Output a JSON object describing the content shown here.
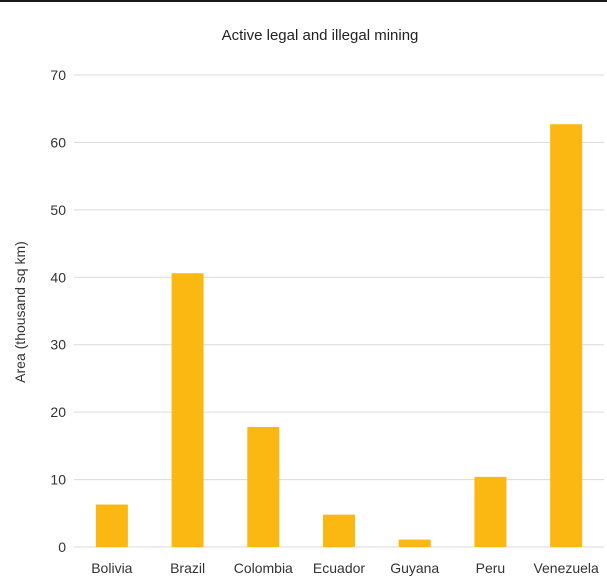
{
  "chart_data": {
    "type": "bar",
    "title": "Active legal and illegal mining",
    "xlabel": "",
    "ylabel": "Area (thousand sq km)",
    "ylim": [
      0,
      70
    ],
    "yticks": [
      0,
      10,
      20,
      30,
      40,
      50,
      60,
      70
    ],
    "grid": true,
    "legend": "none",
    "categories": [
      "Bolivia",
      "Brazil",
      "Colombia",
      "Ecuador",
      "Guyana",
      "Peru",
      "Venezuela"
    ],
    "values": [
      6.3,
      40.6,
      17.8,
      4.8,
      1.1,
      10.4,
      62.7
    ],
    "bar_color": "#fbb813",
    "grid_color": "#d9d9d9"
  }
}
